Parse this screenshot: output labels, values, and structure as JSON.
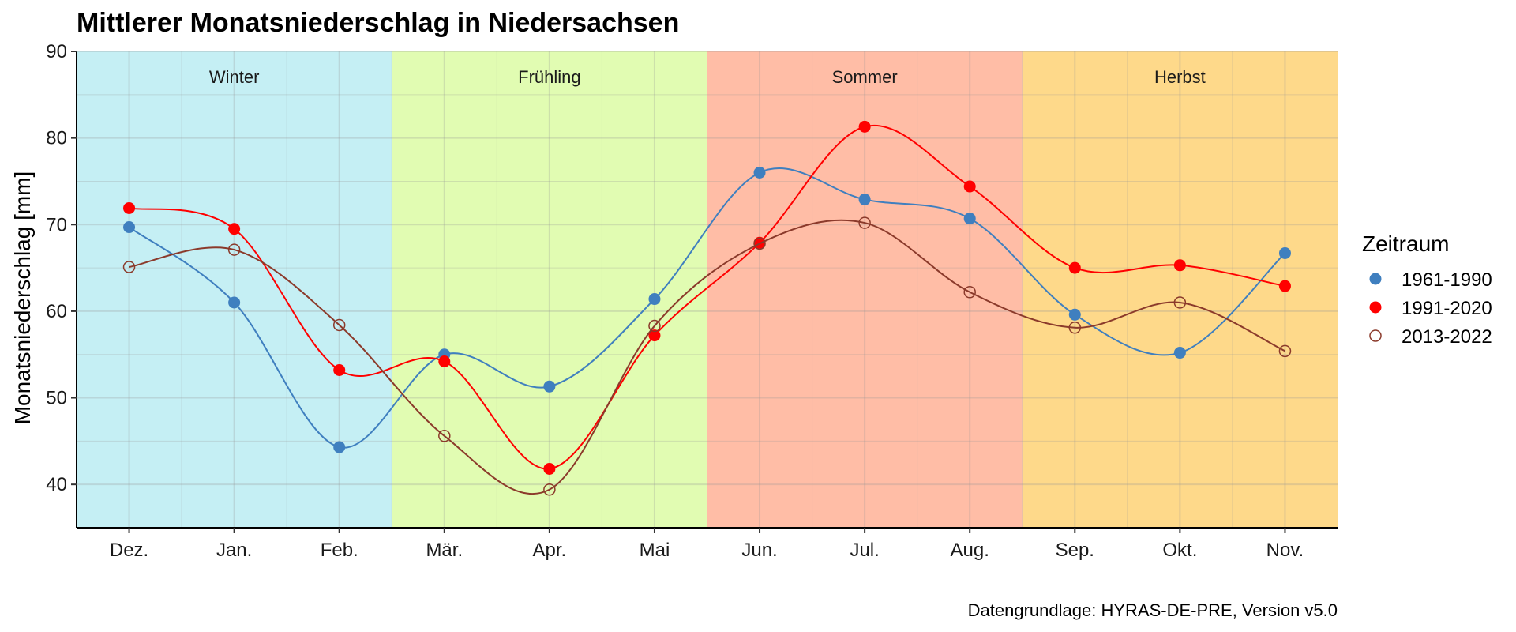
{
  "chart_data": {
    "type": "line",
    "title": "Mittlerer Monatsniederschlag in Niedersachsen",
    "ylabel": "Monatsniederschlag [mm]",
    "xlabel": "",
    "caption": "Datengrundlage: HYRAS-DE-PRE, Version v5.0",
    "categories": [
      "Dez.",
      "Jan.",
      "Feb.",
      "Mär.",
      "Apr.",
      "Mai",
      "Jun.",
      "Jul.",
      "Aug.",
      "Sep.",
      "Okt.",
      "Nov."
    ],
    "ylim": [
      35,
      90
    ],
    "yticks": [
      40,
      50,
      60,
      70,
      80,
      90
    ],
    "grid": true,
    "legend": {
      "title": "Zeitraum",
      "position": "right"
    },
    "seasons": [
      {
        "label": "Winter",
        "color": "#c5eff4"
      },
      {
        "label": "Frühling",
        "color": "#e1fcb2"
      },
      {
        "label": "Sommer",
        "color": "#ffbda6"
      },
      {
        "label": "Herbst",
        "color": "#fed98a"
      }
    ],
    "series": [
      {
        "name": "1961-1990",
        "color": "#3f7fbf",
        "marker": "filled",
        "values": [
          69.7,
          61.0,
          44.3,
          55.0,
          51.3,
          61.4,
          76.0,
          72.9,
          70.7,
          59.6,
          55.2,
          66.7
        ]
      },
      {
        "name": "1991-2020",
        "color": "#ff0000",
        "marker": "filled",
        "values": [
          71.9,
          69.5,
          53.2,
          54.2,
          41.8,
          57.2,
          67.9,
          81.3,
          74.4,
          65.0,
          65.3,
          62.9
        ]
      },
      {
        "name": "2013-2022",
        "color": "#8b3a2b",
        "marker": "open",
        "values": [
          65.1,
          67.1,
          58.4,
          45.6,
          39.4,
          58.3,
          67.8,
          70.2,
          62.2,
          58.1,
          61.0,
          55.4
        ]
      }
    ]
  }
}
